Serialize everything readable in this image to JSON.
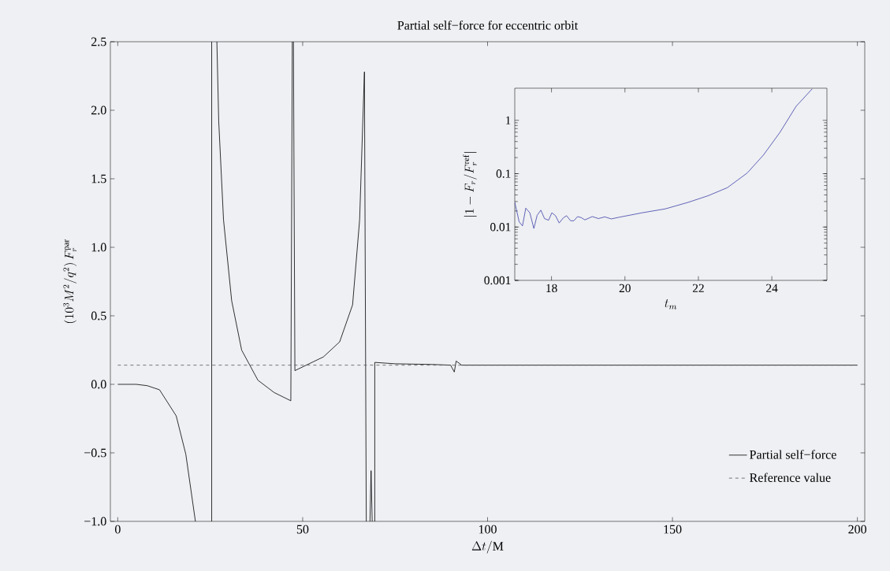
{
  "chart_data": [
    {
      "type": "line",
      "title": "Partial self−force for eccentric orbit",
      "xlabel": "\\Delta t/\\mathrm{M}",
      "ylabel": "(10^3 M^2/q^2)\\,F_r^{\\mathrm{par}}",
      "xlim": [
        -2,
        202
      ],
      "ylim": [
        -1.0,
        2.5
      ],
      "xticks": [
        0,
        50,
        100,
        150,
        200
      ],
      "yticks": [
        {
          "value": -1.0,
          "label": "−1.0"
        },
        {
          "value": -0.5,
          "label": "−0.5"
        },
        {
          "value": 0.0,
          "label": "0.0"
        },
        {
          "value": 0.5,
          "label": "0.5"
        },
        {
          "value": 1.0,
          "label": "1.0"
        },
        {
          "value": 1.5,
          "label": "1.5"
        },
        {
          "value": 2.0,
          "label": "2.0"
        },
        {
          "value": 2.5,
          "label": "2.5"
        }
      ],
      "legend": "bottom right",
      "series": [
        {
          "name": "Partial self−force",
          "color": "#000000",
          "line_style": "solid",
          "x": [
            0,
            5,
            8,
            11.3,
            15.8,
            18.4,
            21.0,
            23,
            25.4,
            25.4,
            26,
            26.8,
            27.3,
            28.6,
            30.8,
            33.5,
            37.9,
            42.3,
            46.8,
            47.2,
            47.3,
            47.5,
            47.9,
            55.6,
            60.0,
            63.5,
            65.4,
            66.7,
            67.2,
            67.7,
            68.2,
            68.5,
            68.8,
            69.2,
            69.5,
            69.5,
            75,
            85,
            90,
            91,
            91.5,
            93,
            200
          ],
          "values": [
            0,
            0,
            -0.01,
            -0.04,
            -0.23,
            -0.51,
            -1.0,
            null,
            -1.0,
            2.5,
            null,
            2.5,
            1.92,
            1.2,
            0.61,
            0.25,
            0.03,
            -0.06,
            -0.12,
            2.5,
            null,
            2.5,
            0.1,
            0.2,
            0.31,
            0.58,
            1.2,
            2.28,
            -1.0,
            null,
            -1.0,
            -0.63,
            -1.0,
            null,
            -1.0,
            0.16,
            0.15,
            0.145,
            0.14,
            0.09,
            0.17,
            0.14,
            0.14
          ]
        },
        {
          "name": "Reference value",
          "color": "#555555",
          "line_style": "dashed",
          "x": [
            0,
            200
          ],
          "values": [
            0.14,
            0.14
          ]
        }
      ]
    },
    {
      "type": "line",
      "xlabel": "t_m",
      "ylabel": "|1-F_r/F_r^{\\mathrm{ref}}|",
      "log": true,
      "xlim": [
        17,
        25.5
      ],
      "ylim": [
        0.001,
        4
      ],
      "xticks": [
        18,
        20,
        22,
        24
      ],
      "yticks": [
        0.001,
        0.01,
        0.1,
        1
      ],
      "series": [
        {
          "color": "#3f3fa8",
          "x": [
            17.0,
            17.12,
            17.21,
            17.3,
            17.41,
            17.52,
            17.61,
            17.71,
            17.81,
            17.92,
            18.01,
            18.11,
            18.21,
            18.32,
            18.41,
            18.52,
            18.61,
            18.71,
            18.81,
            18.91,
            19.11,
            19.28,
            19.45,
            19.63,
            19.85,
            20.12,
            20.47,
            21.1,
            21.72,
            22.26,
            22.79,
            23.33,
            23.77,
            24.22,
            24.66,
            25.1
          ],
          "values": [
            0.029,
            0.0125,
            0.0105,
            0.0226,
            0.0185,
            0.0094,
            0.0166,
            0.0207,
            0.0144,
            0.0134,
            0.0185,
            0.0163,
            0.0119,
            0.0148,
            0.0163,
            0.0131,
            0.0131,
            0.0157,
            0.015,
            0.0136,
            0.0157,
            0.0144,
            0.0155,
            0.0142,
            0.0153,
            0.0166,
            0.0185,
            0.0219,
            0.029,
            0.0385,
            0.0547,
            0.103,
            0.223,
            0.594,
            1.83,
            3.9
          ]
        }
      ]
    }
  ]
}
